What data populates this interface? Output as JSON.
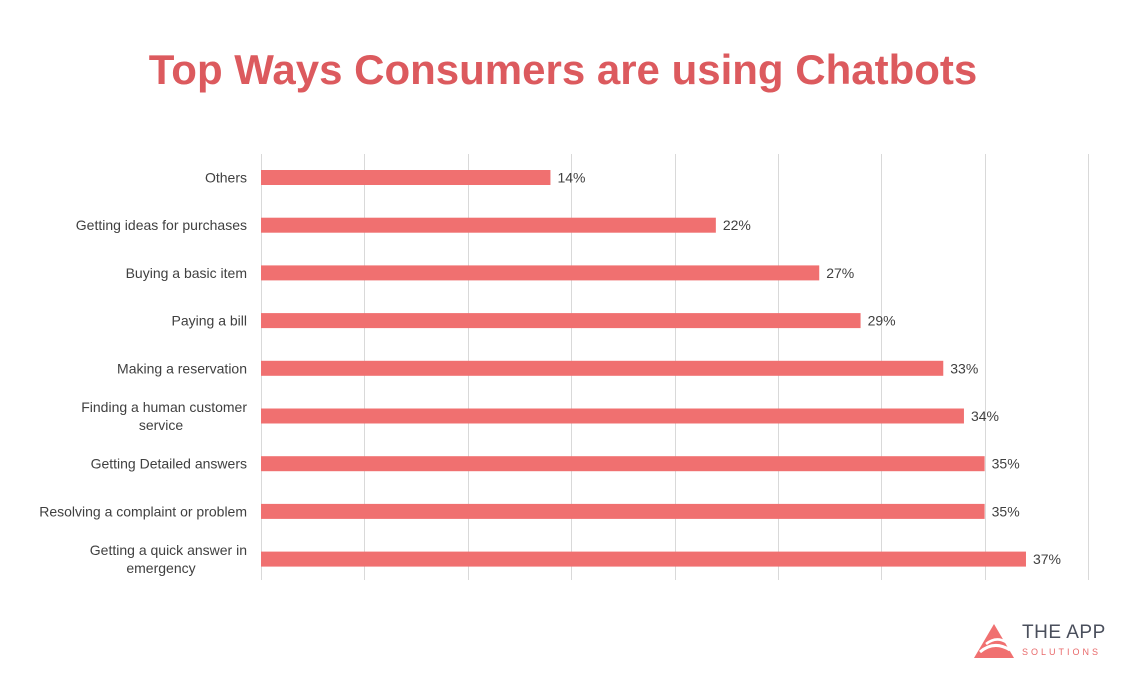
{
  "colors": {
    "bar": "#f07070",
    "title": "#dc5a5e",
    "grid": "#d9d9d9",
    "label": "#404040"
  },
  "chart_data": {
    "type": "bar",
    "orientation": "horizontal",
    "title": "Top Ways Consumers are using Chatbots",
    "xlabel": "",
    "ylabel": "",
    "xlim": [
      0,
      40
    ],
    "grid": true,
    "categories": [
      "Others",
      "Getting ideas for purchases",
      "Buying a basic item",
      "Paying a bill",
      "Making a reservation",
      "Finding a human customer service",
      "Getting Detailed answers",
      "Resolving a complaint or problem",
      "Getting a quick answer in emergency"
    ],
    "category_lines": [
      [
        "Others"
      ],
      [
        "Getting ideas for purchases"
      ],
      [
        "Buying a basic item"
      ],
      [
        "Paying a bill"
      ],
      [
        "Making a reservation"
      ],
      [
        "Finding a human customer",
        "service"
      ],
      [
        "Getting Detailed answers"
      ],
      [
        "Resolving a complaint or problem"
      ],
      [
        "Getting a quick answer in",
        "emergency"
      ]
    ],
    "values": [
      14,
      22,
      27,
      29,
      33,
      34,
      35,
      35,
      37
    ],
    "data_labels": [
      "14%",
      "22%",
      "27%",
      "29%",
      "33%",
      "34%",
      "35%",
      "35%",
      "37%"
    ]
  },
  "logo": {
    "line1": "THE APP",
    "line2": "SOLUTIONS"
  }
}
